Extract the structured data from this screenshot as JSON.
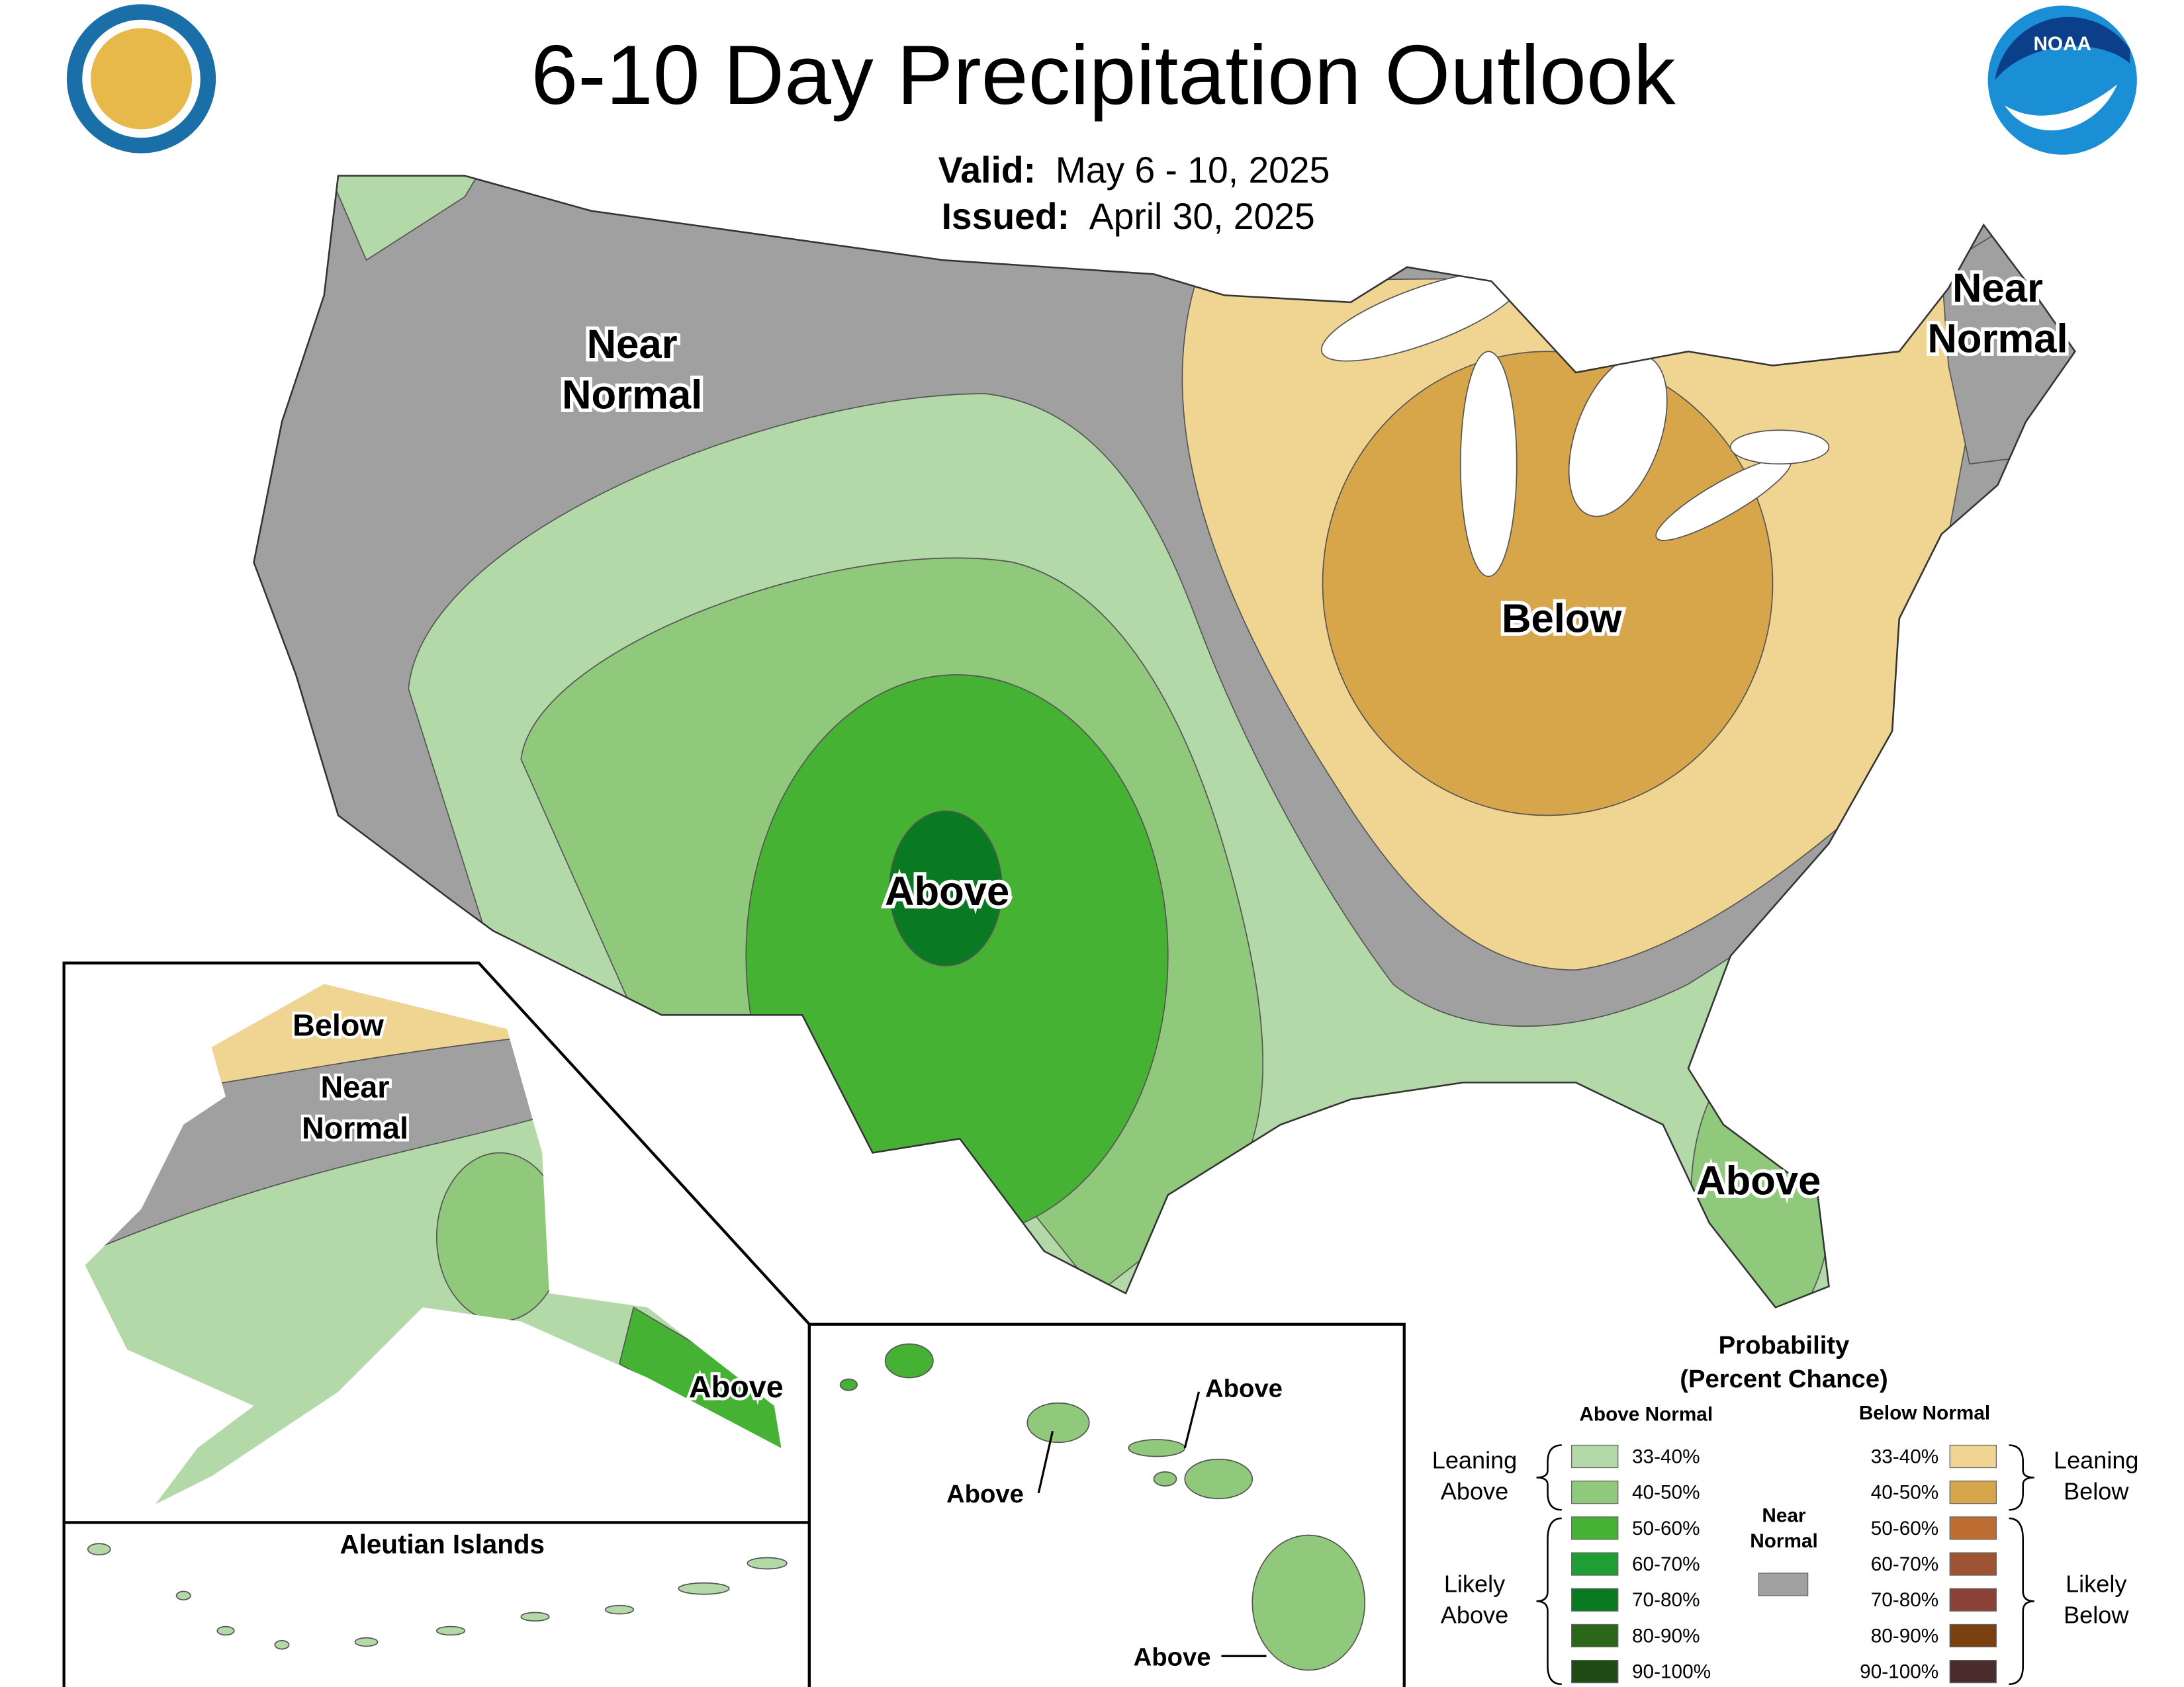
{
  "header": {
    "title": "6-10 Day Precipitation Outlook",
    "valid_label": "Valid:",
    "valid": "May 6 - 10, 2025",
    "issued_label": "Issued:",
    "issued": "April 30, 2025"
  },
  "map_labels": {
    "northwest": [
      "Near",
      "Normal"
    ],
    "northeast": [
      "Near",
      "Normal"
    ],
    "great_lakes": "Below",
    "southern_plains": "Above",
    "florida": "Above",
    "alaska_north": "Below",
    "alaska_middle": [
      "Near",
      "Normal"
    ],
    "alaska_southeast": "Above",
    "aleutian_title": "Aleutian Islands",
    "hawaii_kauai": "Above",
    "hawaii_oahu": "Above",
    "hawaii_big_island": "Above"
  },
  "legend": {
    "title": [
      "Probability",
      "(Percent Chance)"
    ],
    "above_heading": "Above Normal",
    "below_heading": "Below Normal",
    "above": [
      "33-40%",
      "40-50%",
      "50-60%",
      "60-70%",
      "70-80%",
      "80-90%",
      "90-100%"
    ],
    "above_colors": [
      "#b3d9a9",
      "#90c97b",
      "#45b233",
      "#1e9e34",
      "#0a7a22",
      "#2b6619",
      "#1e4b13"
    ],
    "below": [
      "33-40%",
      "40-50%",
      "50-60%",
      "60-70%",
      "70-80%",
      "80-90%",
      "90-100%"
    ],
    "below_colors": [
      "#f0d492",
      "#d8a64a",
      "#be6d32",
      "#9e5332",
      "#8b4138",
      "#7b4010",
      "#4b2c2c"
    ],
    "near_normal": [
      "Near",
      "Normal"
    ],
    "near_color": "#a0a0a0",
    "leaning_above": [
      "Leaning",
      "Above"
    ],
    "likely_above": [
      "Likely",
      "Above"
    ],
    "leaning_below": [
      "Leaning",
      "Below"
    ],
    "likely_below": [
      "Likely",
      "Below"
    ]
  }
}
